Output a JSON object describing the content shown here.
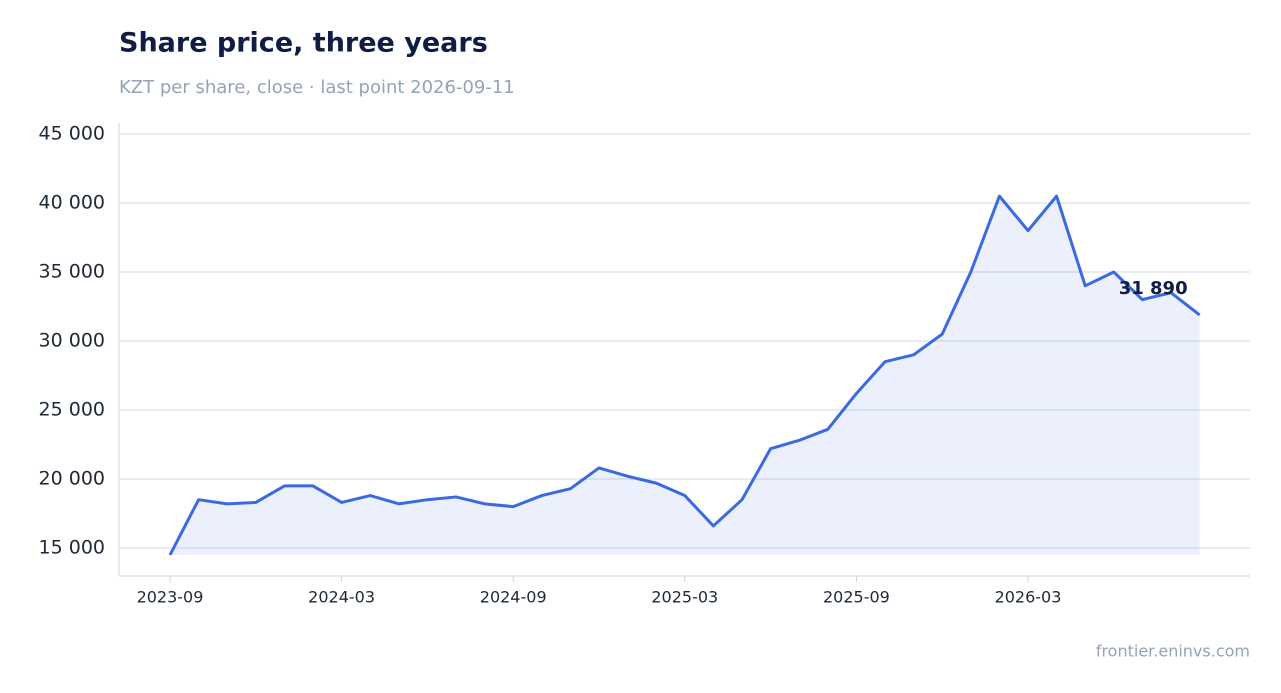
{
  "chart_data": {
    "type": "line",
    "title": "Share price, three years",
    "subtitle": "KZT per share, close · last point 2026-09-11",
    "source": "frontier.eninvs.com",
    "x": [
      "2023-09",
      "2023-10",
      "2023-11",
      "2023-12",
      "2024-01",
      "2024-02",
      "2024-03",
      "2024-04",
      "2024-05",
      "2024-06",
      "2024-07",
      "2024-08",
      "2024-09",
      "2024-10",
      "2024-11",
      "2024-12",
      "2025-01",
      "2025-02",
      "2025-03",
      "2025-04",
      "2025-05",
      "2025-06",
      "2025-07",
      "2025-08",
      "2025-09",
      "2025-10",
      "2025-11",
      "2025-12",
      "2026-01",
      "2026-02",
      "2026-03",
      "2026-04",
      "2026-05",
      "2026-06",
      "2026-07",
      "2026-08",
      "2026-09"
    ],
    "series": [
      {
        "color": "#3b6ae0",
        "values": [
          14500,
          18500,
          18200,
          18300,
          19500,
          19500,
          18300,
          18800,
          18200,
          18500,
          18700,
          18200,
          18000,
          18800,
          19300,
          20800,
          20200,
          19700,
          18800,
          16600,
          18500,
          22200,
          22800,
          23600,
          26200,
          28500,
          29000,
          30500,
          35000,
          40500,
          38000,
          40500,
          34000,
          35000,
          33000,
          33500,
          31890
        ],
        "value_labels": [
          null,
          null,
          null,
          null,
          null,
          null,
          null,
          null,
          null,
          null,
          null,
          null,
          null,
          null,
          null,
          null,
          null,
          null,
          null,
          null,
          null,
          null,
          null,
          null,
          null,
          null,
          null,
          null,
          null,
          null,
          null,
          null,
          null,
          null,
          null,
          null,
          "31 890"
        ]
      }
    ],
    "ylim": [
      12970,
      45800
    ],
    "yticks": [
      {
        "value": 15000,
        "label": "15 000"
      },
      {
        "value": 20000,
        "label": "20 000"
      },
      {
        "value": 25000,
        "label": "25 000"
      },
      {
        "value": 30000,
        "label": "30 000"
      },
      {
        "value": 35000,
        "label": "35 000"
      },
      {
        "value": 40000,
        "label": "40 000"
      },
      {
        "value": 45000,
        "label": "45 000"
      }
    ],
    "xticks": [
      "2023-09",
      "2024-03",
      "2024-09",
      "2025-03",
      "2025-09",
      "2026-03"
    ],
    "grid": true
  }
}
